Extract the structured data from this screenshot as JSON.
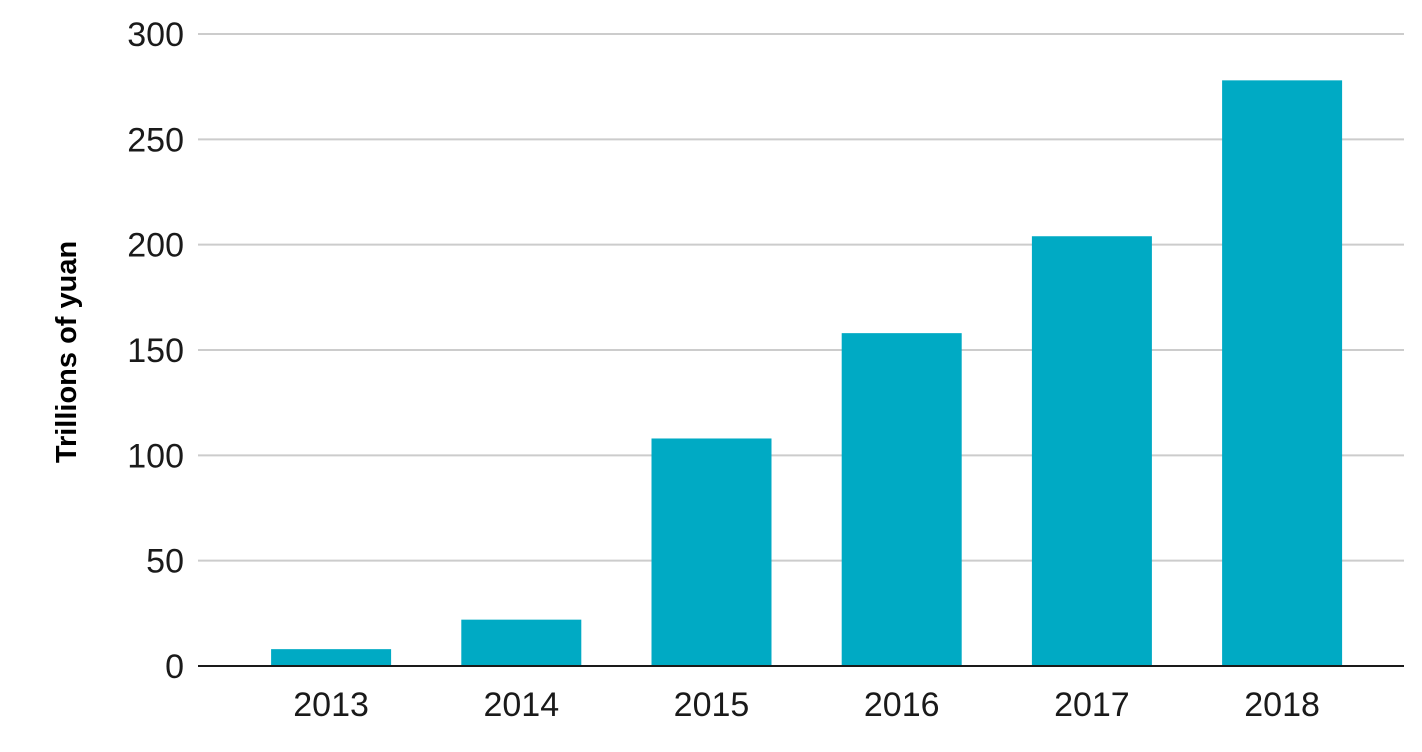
{
  "chart_data": {
    "type": "bar",
    "title": "",
    "xlabel": "",
    "ylabel": "Trillions of yuan",
    "categories": [
      "2013",
      "2014",
      "2015",
      "2016",
      "2017",
      "2018"
    ],
    "values": [
      8,
      22,
      108,
      158,
      204,
      278
    ],
    "ylim": [
      0,
      300
    ],
    "yticks": [
      0,
      50,
      100,
      150,
      200,
      250,
      300
    ],
    "ytick_labels": [
      "0",
      "50",
      "100",
      "150",
      "200",
      "250",
      "300"
    ],
    "grid": true,
    "legend": "none",
    "colors": {
      "bar": "#00aac4",
      "grid": "#cccccc",
      "baseline": "#1a1a1a"
    }
  }
}
